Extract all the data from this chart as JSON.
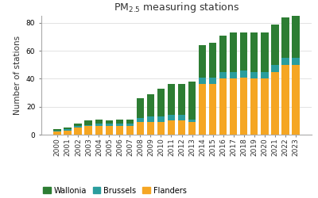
{
  "years": [
    2000,
    2001,
    2002,
    2003,
    2004,
    2005,
    2006,
    2007,
    2008,
    2009,
    2010,
    2011,
    2012,
    2013,
    2014,
    2015,
    2016,
    2017,
    2018,
    2019,
    2020,
    2021,
    2022,
    2023
  ],
  "wallonia": [
    1,
    1,
    2,
    3,
    3,
    2,
    3,
    3,
    14,
    16,
    20,
    22,
    22,
    27,
    23,
    25,
    26,
    28,
    27,
    28,
    28,
    29,
    29,
    30
  ],
  "brussels": [
    1,
    1,
    1,
    1,
    2,
    2,
    2,
    2,
    3,
    4,
    4,
    4,
    4,
    2,
    5,
    5,
    5,
    5,
    5,
    5,
    5,
    5,
    5,
    5
  ],
  "flanders": [
    2,
    3,
    5,
    6,
    6,
    6,
    6,
    6,
    9,
    9,
    9,
    10,
    10,
    9,
    36,
    36,
    40,
    40,
    41,
    40,
    40,
    45,
    50,
    50
  ],
  "title": "PM$_{2.5}$ measuring stations",
  "ylabel": "Number of stations",
  "ylim": [
    0,
    85
  ],
  "yticks": [
    0,
    20,
    40,
    60,
    80
  ],
  "wallonia_color": "#2d7d33",
  "brussels_color": "#2a9d9d",
  "flanders_color": "#f5a623",
  "background_color": "#ffffff",
  "plot_bg_color": "#ffffff"
}
